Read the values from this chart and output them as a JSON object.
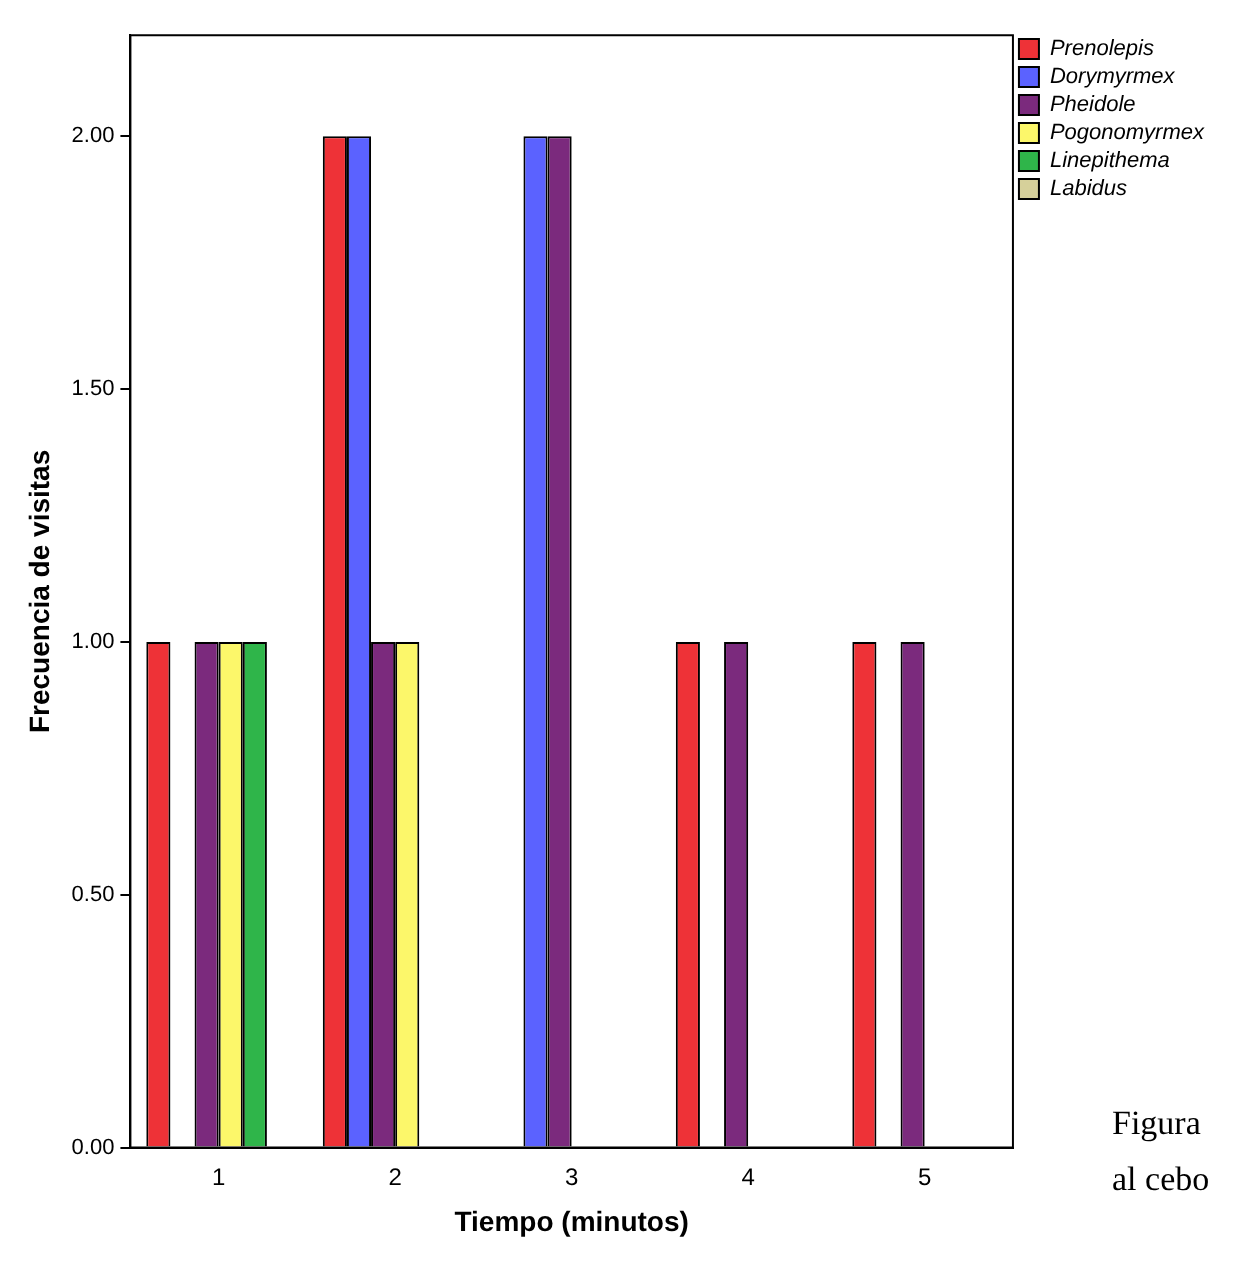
{
  "chart_data": {
    "type": "bar",
    "xlabel": "Tiempo (minutos)",
    "ylabel": "Frecuencia de visitas",
    "categories": [
      "1",
      "2",
      "3",
      "4",
      "5"
    ],
    "series": [
      {
        "name": "Prenolepis",
        "color": "#ee3237",
        "values": [
          1,
          2,
          null,
          1,
          1
        ]
      },
      {
        "name": "Dorymyrmex",
        "color": "#5b62ff",
        "values": [
          null,
          2,
          2,
          null,
          null
        ]
      },
      {
        "name": "Pheidole",
        "color": "#7b2a7d",
        "values": [
          1,
          1,
          2,
          1,
          1
        ]
      },
      {
        "name": "Pogonomyrmex",
        "color": "#fcf76a",
        "values": [
          1,
          1,
          null,
          null,
          null
        ]
      },
      {
        "name": "Linepithema",
        "color": "#2fb54a",
        "values": [
          1,
          null,
          null,
          null,
          null
        ]
      },
      {
        "name": "Labidus",
        "color": "#d6d09a",
        "values": [
          null,
          null,
          null,
          null,
          null
        ]
      }
    ],
    "ylim": [
      0,
      2.2
    ],
    "yticks": [
      {
        "value": 0,
        "label": "0.00"
      },
      {
        "value": 0.5,
        "label": "0.50"
      },
      {
        "value": 1,
        "label": "1.00"
      },
      {
        "value": 1.5,
        "label": "1.50"
      },
      {
        "value": 2,
        "label": "2.00"
      }
    ],
    "grid": false,
    "legend": "top right",
    "annotations": [
      "Figura",
      "al cebo"
    ]
  }
}
